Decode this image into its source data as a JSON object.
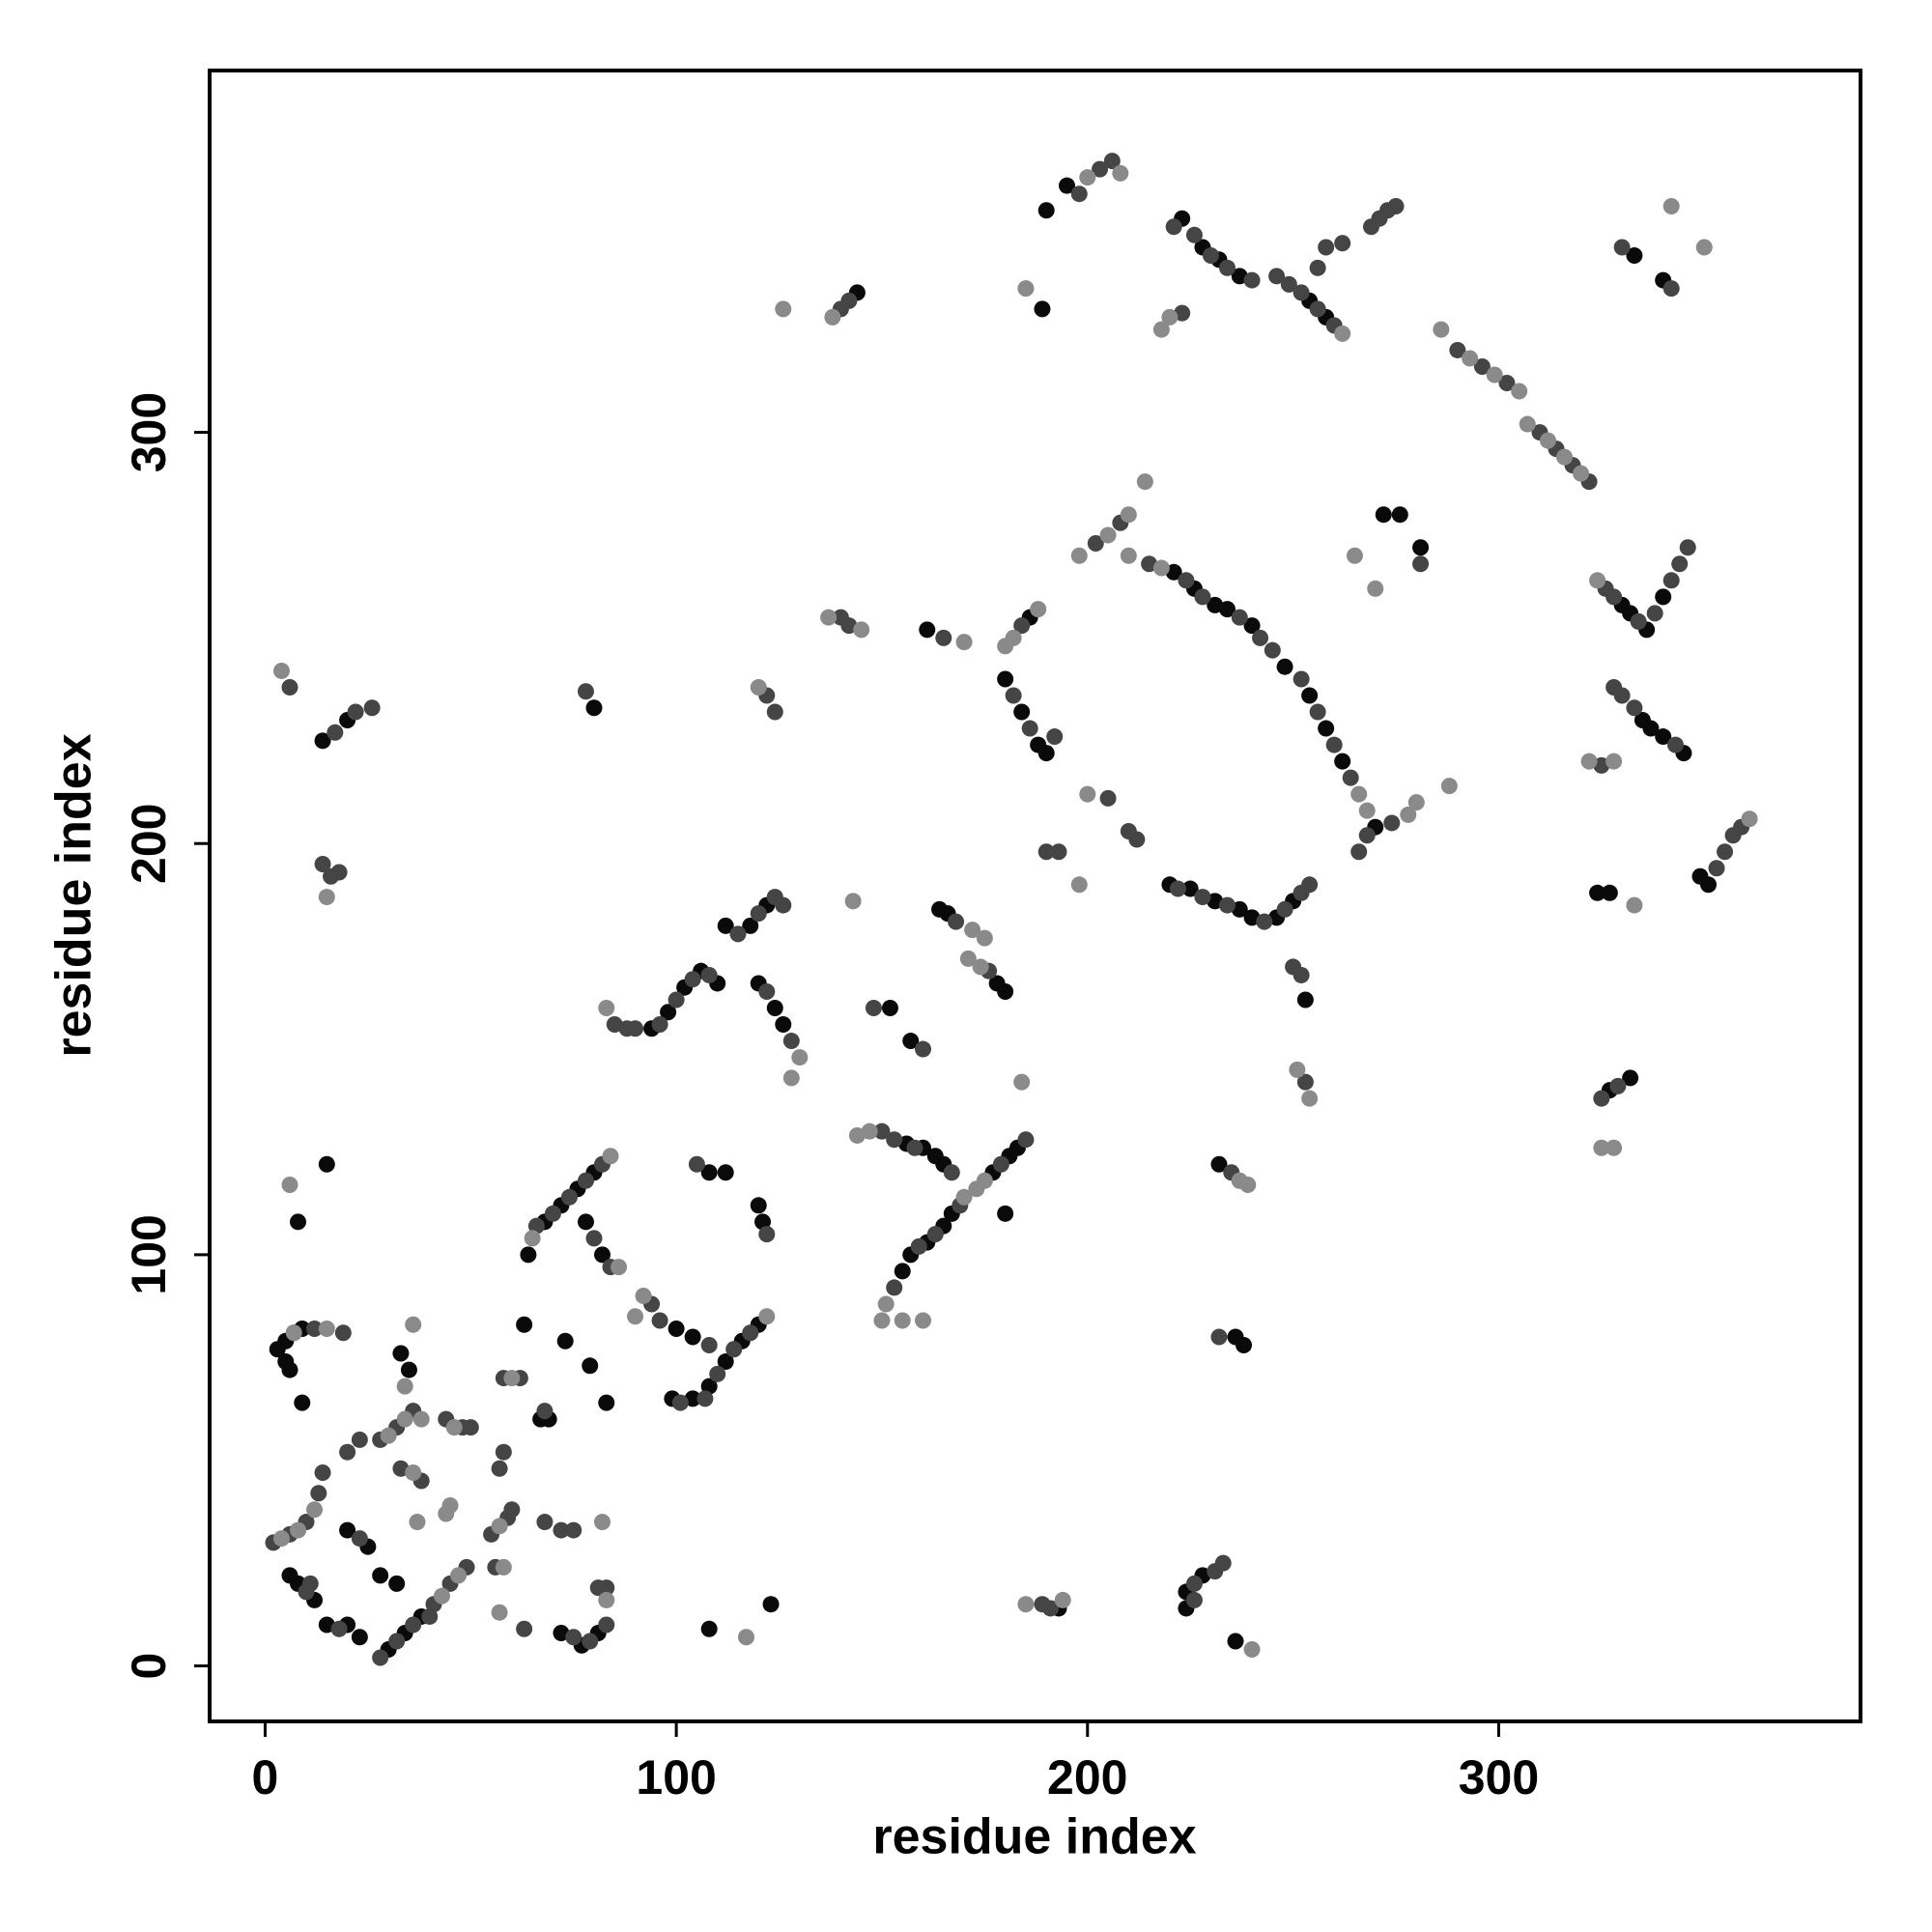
{
  "chart_data": {
    "type": "scatter",
    "xlabel": "residue index",
    "ylabel": "residue index",
    "xlim": [
      -13.5,
      388
    ],
    "ylim": [
      -13.5,
      388
    ],
    "xticks": [
      0,
      100,
      200,
      300
    ],
    "yticks": [
      0,
      100,
      200,
      300
    ],
    "grid": false,
    "series": [
      {
        "color": "#0a0a0a",
        "x": [
          3,
          5,
          7,
          9,
          5,
          6,
          9,
          8,
          15,
          6,
          8,
          12,
          15,
          20,
          23,
          20,
          25,
          30,
          34,
          38,
          28,
          32,
          33,
          35,
          63,
          67,
          69,
          64,
          68,
          72,
          76,
          80,
          78,
          82,
          72,
          77,
          81,
          73,
          79,
          83,
          80,
          14,
          20,
          94,
          98,
          102,
          106,
          110,
          112,
          118,
          122,
          120,
          124,
          126,
          100,
          104,
          99,
          104,
          108,
          112,
          116,
          120,
          108,
          112,
          120,
          121,
          108,
          123,
          144,
          156,
          160,
          163,
          165,
          155,
          157,
          161,
          165,
          167,
          152,
          157,
          161,
          164,
          166,
          178,
          180,
          177,
          181,
          183,
          180,
          193,
          180,
          184,
          188,
          190,
          186,
          190,
          195,
          189,
          221,
          226,
          231,
          234,
          240,
          248,
          254,
          258,
          262,
          220,
          225,
          231,
          237,
          240,
          246,
          250,
          223,
          228,
          232,
          237,
          224,
          228,
          224,
          232,
          236,
          238,
          236,
          253,
          254,
          258,
          276,
          281,
          272,
          270,
          330,
          332,
          336,
          340,
          335,
          337,
          340,
          345,
          324,
          327,
          327,
          332,
          333,
          340,
          349,
          351
        ],
        "values": [
          77,
          79,
          81,
          82,
          74,
          72,
          64,
          108,
          122,
          22,
          20,
          16,
          10,
          10,
          7,
          33,
          29,
          4,
          8,
          12,
          22,
          20,
          76,
          72,
          83,
          60,
          60,
          100,
          108,
          112,
          116,
          120,
          108,
          100,
          8,
          5,
          8,
          79,
          73,
          64,
          233,
          225,
          230,
          155,
          159,
          165,
          169,
          166,
          180,
          180,
          185,
          166,
          160,
          156,
          82,
          80,
          65,
          65,
          68,
          74,
          79,
          83,
          120,
          120,
          112,
          108,
          9,
          15,
          334,
          127,
          126,
          124,
          122,
          96,
          100,
          103,
          107,
          110,
          160,
          152,
          252,
          184,
          183,
          166,
          164,
          120,
          124,
          126,
          110,
          14,
          240,
          232,
          224,
          222,
          255,
          354,
          360,
          330,
          266,
          262,
          258,
          257,
          253,
          243,
          236,
          228,
          220,
          190,
          189,
          186,
          184,
          182,
          182,
          186,
          352,
          345,
          342,
          338,
          18,
          22,
          14,
          122,
          80,
          78,
          6,
          162,
          332,
          328,
          280,
          272,
          280,
          204,
          258,
          256,
          252,
          260,
          230,
          228,
          226,
          222,
          188,
          188,
          140,
          143,
          343,
          337,
          192,
          190
        ]
      },
      {
        "color": "#454545",
        "x": [
          2,
          6,
          10,
          13,
          12,
          19,
          10,
          11,
          18,
          23,
          14,
          20,
          23,
          28,
          32,
          36,
          40,
          28,
          32,
          36,
          33,
          38,
          44,
          48,
          50,
          41,
          45,
          49,
          55,
          59,
          60,
          57,
          58,
          56,
          63,
          58,
          62,
          68,
          66,
          70,
          74,
          78,
          82,
          80,
          84,
          68,
          72,
          75,
          75,
          79,
          83,
          81,
          83,
          78,
          17,
          22,
          26,
          6,
          14,
          16,
          18,
          85,
          88,
          90,
          96,
          100,
          104,
          108,
          115,
          120,
          124,
          126,
          122,
          128,
          94,
          96,
          108,
          101,
          107,
          110,
          114,
          118,
          105,
          122,
          122,
          124,
          140,
          142,
          140,
          142,
          150,
          153,
          158,
          167,
          153,
          159,
          163,
          169,
          148,
          160,
          165,
          168,
          176,
          179,
          185,
          191,
          189,
          182,
          186,
          184,
          192,
          198,
          203,
          206,
          190,
          193,
          202,
          205,
          210,
          212,
          208,
          215,
          224,
          228,
          237,
          242,
          245,
          252,
          256,
          260,
          264,
          222,
          228,
          234,
          243,
          248,
          252,
          254,
          223,
          221,
          226,
          230,
          234,
          240,
          226,
          231,
          233,
          226,
          235,
          232,
          250,
          252,
          253,
          246,
          249,
          252,
          256,
          260,
          256,
          258,
          262,
          269,
          271,
          273,
          275,
          281,
          266,
          268,
          274,
          290,
          296,
          302,
          310,
          314,
          318,
          322,
          326,
          328,
          334,
          338,
          342,
          344,
          346,
          328,
          330,
          333,
          343,
          325,
          325,
          329,
          330,
          342,
          353,
          355,
          357,
          359
        ],
        "values": [
          30,
          32,
          35,
          42,
          82,
          81,
          18,
          20,
          9,
          31,
          47,
          52,
          55,
          2,
          6,
          10,
          12,
          55,
          58,
          62,
          48,
          45,
          60,
          58,
          58,
          15,
          20,
          24,
          32,
          36,
          38,
          48,
          52,
          24,
          9,
          70,
          70,
          62,
          107,
          110,
          114,
          118,
          122,
          104,
          97,
          35,
          33,
          33,
          7,
          6,
          10,
          19,
          19,
          237,
          227,
          232,
          233,
          238,
          195,
          192,
          193,
          156,
          155,
          155,
          156,
          162,
          167,
          168,
          178,
          183,
          187,
          185,
          164,
          152,
          88,
          84,
          78,
          64,
          65,
          71,
          77,
          81,
          122,
          105,
          236,
          232,
          330,
          332,
          255,
          253,
          130,
          128,
          126,
          120,
          92,
          102,
          105,
          112,
          160,
          150,
          250,
          181,
          169,
          122,
          128,
          14,
          15,
          236,
          228,
          253,
          226,
          358,
          364,
          366,
          198,
          198,
          273,
          211,
          203,
          201,
          278,
          268,
          264,
          260,
          255,
          250,
          247,
          240,
          232,
          224,
          216,
          189,
          187,
          185,
          181,
          184,
          188,
          190,
          329,
          350,
          348,
          343,
          340,
          337,
          20,
          23,
          25,
          16,
          120,
          80,
          170,
          168,
          142,
          338,
          336,
          334,
          330,
          326,
          340,
          345,
          346,
          350,
          352,
          354,
          355,
          268,
          198,
          202,
          205,
          320,
          316,
          312,
          300,
          296,
          292,
          288,
          262,
          260,
          254,
          256,
          264,
          268,
          272,
          238,
          236,
          233,
          224,
          219,
          138,
          141,
          345,
          335,
          194,
          198,
          202,
          204
        ]
      },
      {
        "color": "#8a8a8a",
        "x": [
          4,
          8,
          12,
          7,
          15,
          6,
          15,
          4,
          30,
          34,
          38,
          34,
          36,
          36,
          37,
          46,
          43,
          47,
          45,
          44,
          57,
          58,
          57,
          60,
          65,
          84,
          86,
          82,
          83,
          83,
          130,
          128,
          90,
          92,
          122,
          117,
          120,
          126,
          138,
          137,
          145,
          143,
          144,
          147,
          151,
          150,
          155,
          160,
          170,
          172,
          175,
          171,
          174,
          170,
          173,
          175,
          184,
          185,
          194,
          180,
          182,
          188,
          200,
          208,
          185,
          198,
          198,
          205,
          210,
          200,
          214,
          210,
          218,
          266,
          268,
          218,
          220,
          239,
          237,
          240,
          251,
          254,
          262,
          265,
          270,
          278,
          280,
          288,
          286,
          293,
          299,
          305,
          307,
          312,
          316,
          320,
          324,
          322,
          328,
          333,
          328,
          325,
          342,
          350,
          361
        ],
        "values": [
          31,
          33,
          38,
          81,
          82,
          117,
          187,
          242,
          56,
          60,
          60,
          68,
          83,
          47,
          35,
          58,
          17,
          22,
          39,
          37,
          34,
          24,
          13,
          70,
          104,
          124,
          97,
          35,
          16,
          160,
          148,
          143,
          85,
          90,
          85,
          7,
          238,
          330,
          328,
          255,
          252,
          186,
          129,
          130,
          88,
          84,
          84,
          84,
          249,
          179,
          177,
          172,
          170,
          114,
          116,
          118,
          142,
          15,
          16,
          248,
          250,
          257,
          362,
          363,
          335,
          190,
          270,
          275,
          270,
          212,
          288,
          280,
          267,
          212,
          208,
          325,
          328,
          117,
          118,
          4,
          145,
          138,
          324,
          270,
          262,
          207,
          210,
          214,
          325,
          318,
          314,
          310,
          302,
          298,
          294,
          290,
          264,
          220,
          220,
          185,
          126,
          126,
          355,
          345,
          206
        ]
      }
    ]
  }
}
